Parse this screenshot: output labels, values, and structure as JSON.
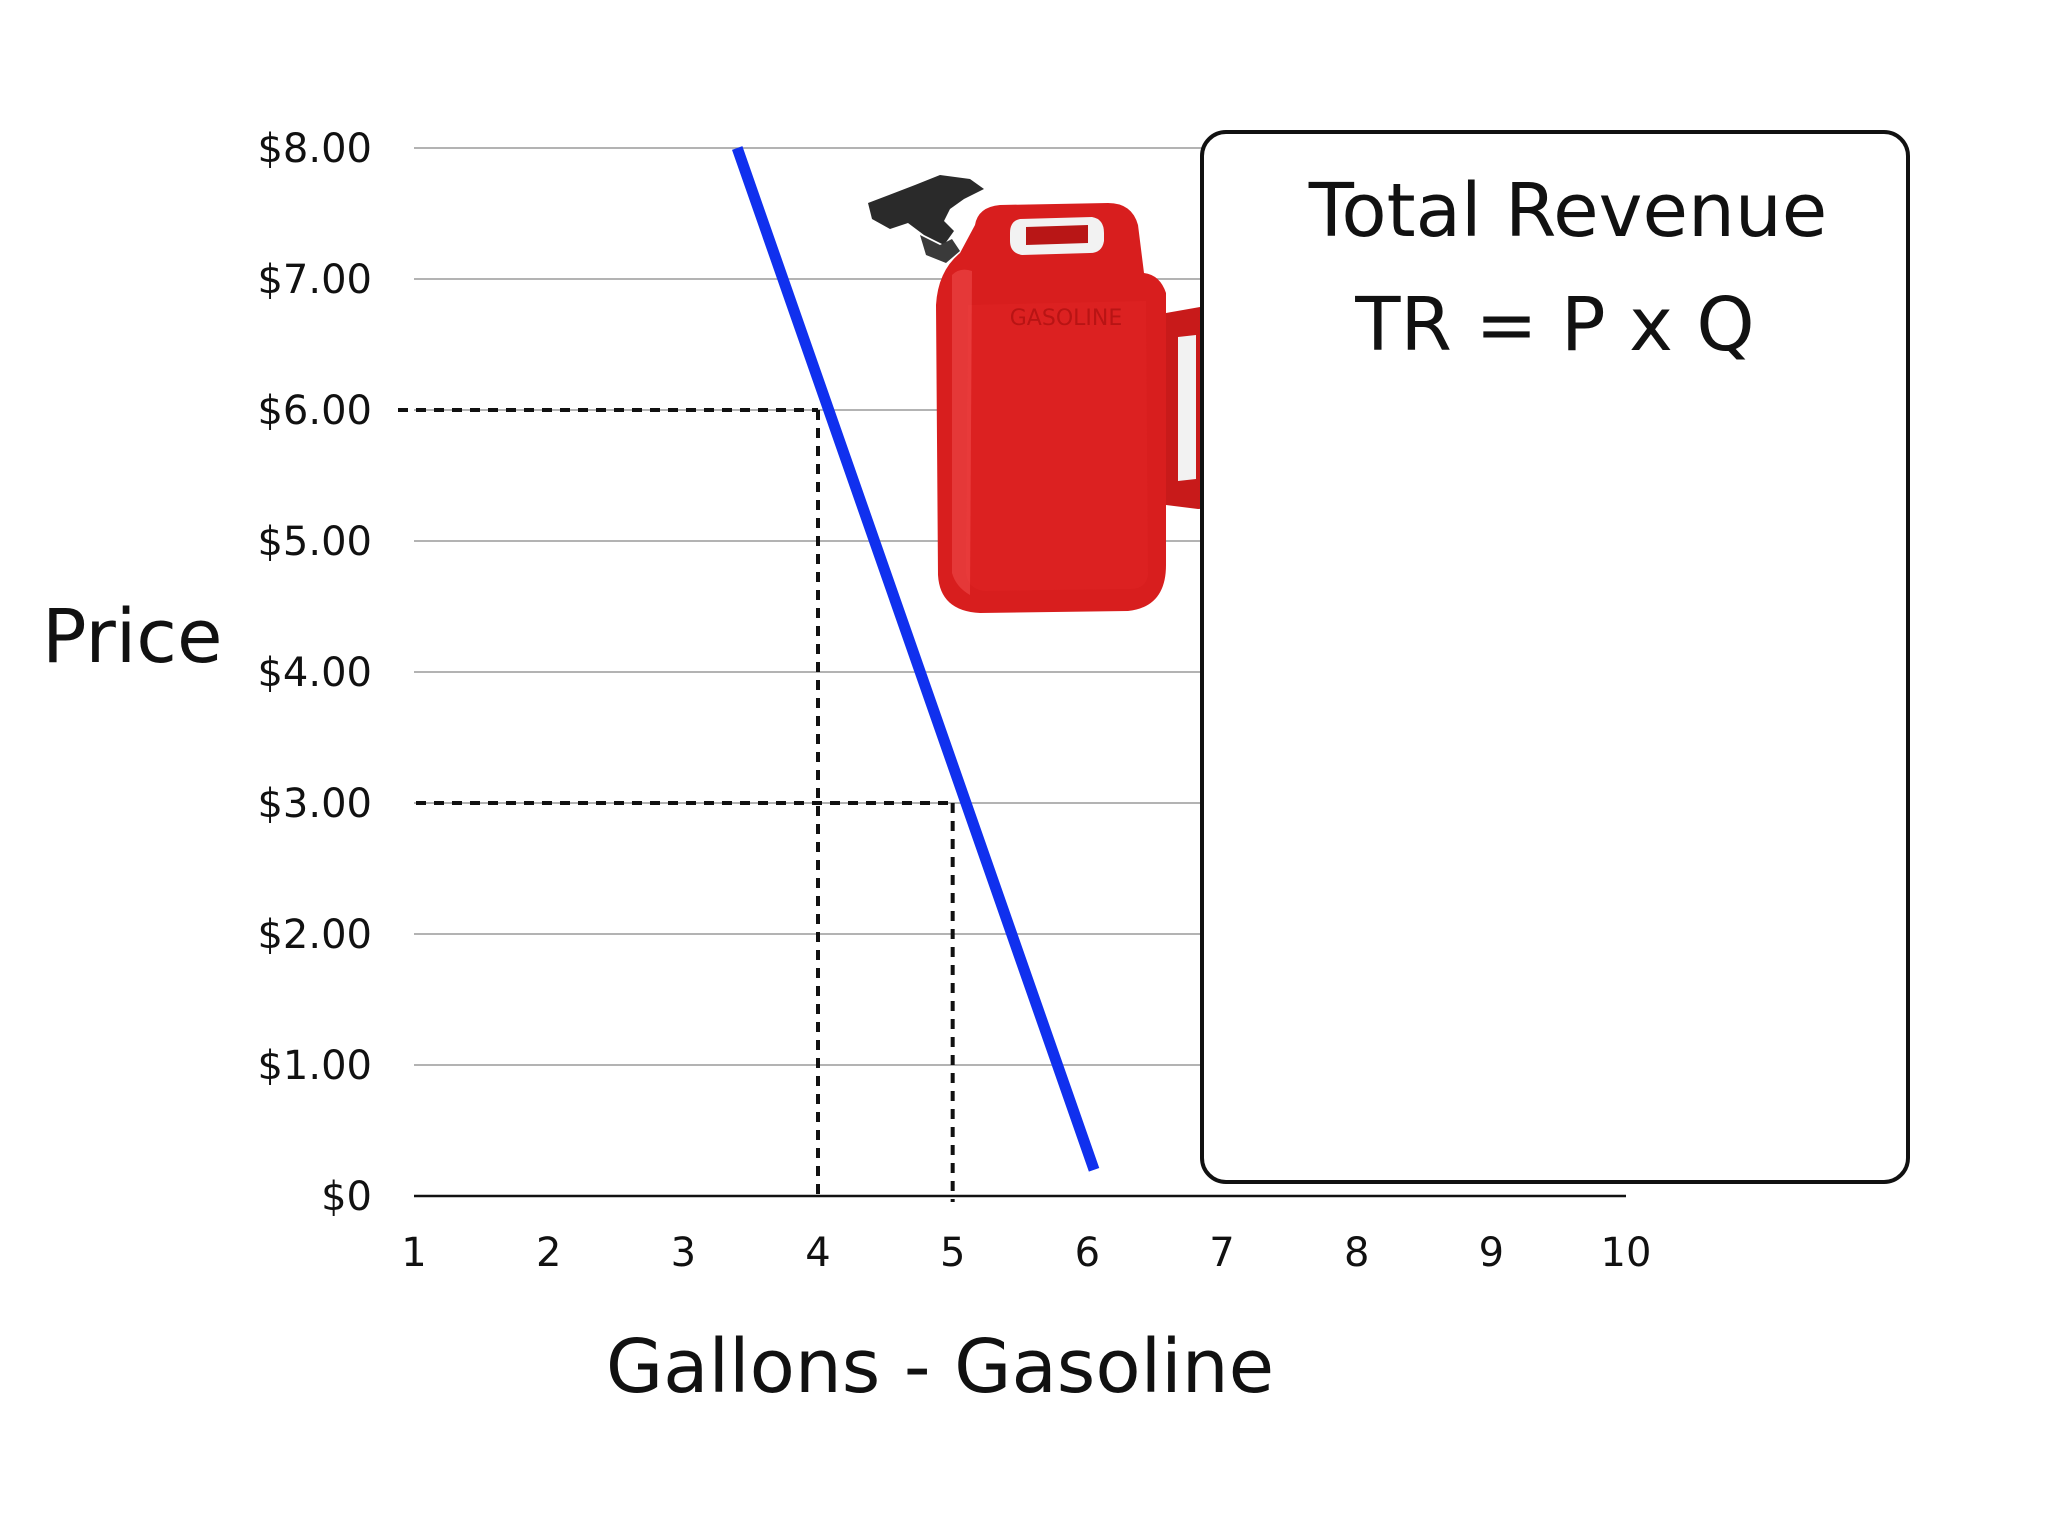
{
  "chart_data": {
    "type": "line",
    "ylabel": "Price",
    "xlabel": "Gallons - Gasoline",
    "x_ticks": [
      "1",
      "2",
      "3",
      "4",
      "5",
      "6",
      "7",
      "8",
      "9",
      "10"
    ],
    "x_range": [
      1,
      10
    ],
    "y_ticks": [
      "$0",
      "$1.00",
      "$2.00",
      "$3.00",
      "$4.00",
      "$5.00",
      "$6.00",
      "$7.00",
      "$8.00"
    ],
    "y_range": [
      0,
      8
    ],
    "grid": "horizontal",
    "series": [
      {
        "points": [
          [
            3.4,
            8.0
          ],
          [
            6.05,
            0.2
          ]
        ],
        "color": "#1030ee"
      }
    ],
    "reference_points": [
      {
        "x": 4,
        "y": 6
      },
      {
        "x": 5,
        "y": 3
      }
    ]
  },
  "revenue_box": {
    "title": "Total Revenue",
    "formula": "TR = P x Q"
  },
  "illustration": {
    "icon": "gasoline-can-icon",
    "color": "#d81e1e",
    "label": "GASOLINE"
  }
}
